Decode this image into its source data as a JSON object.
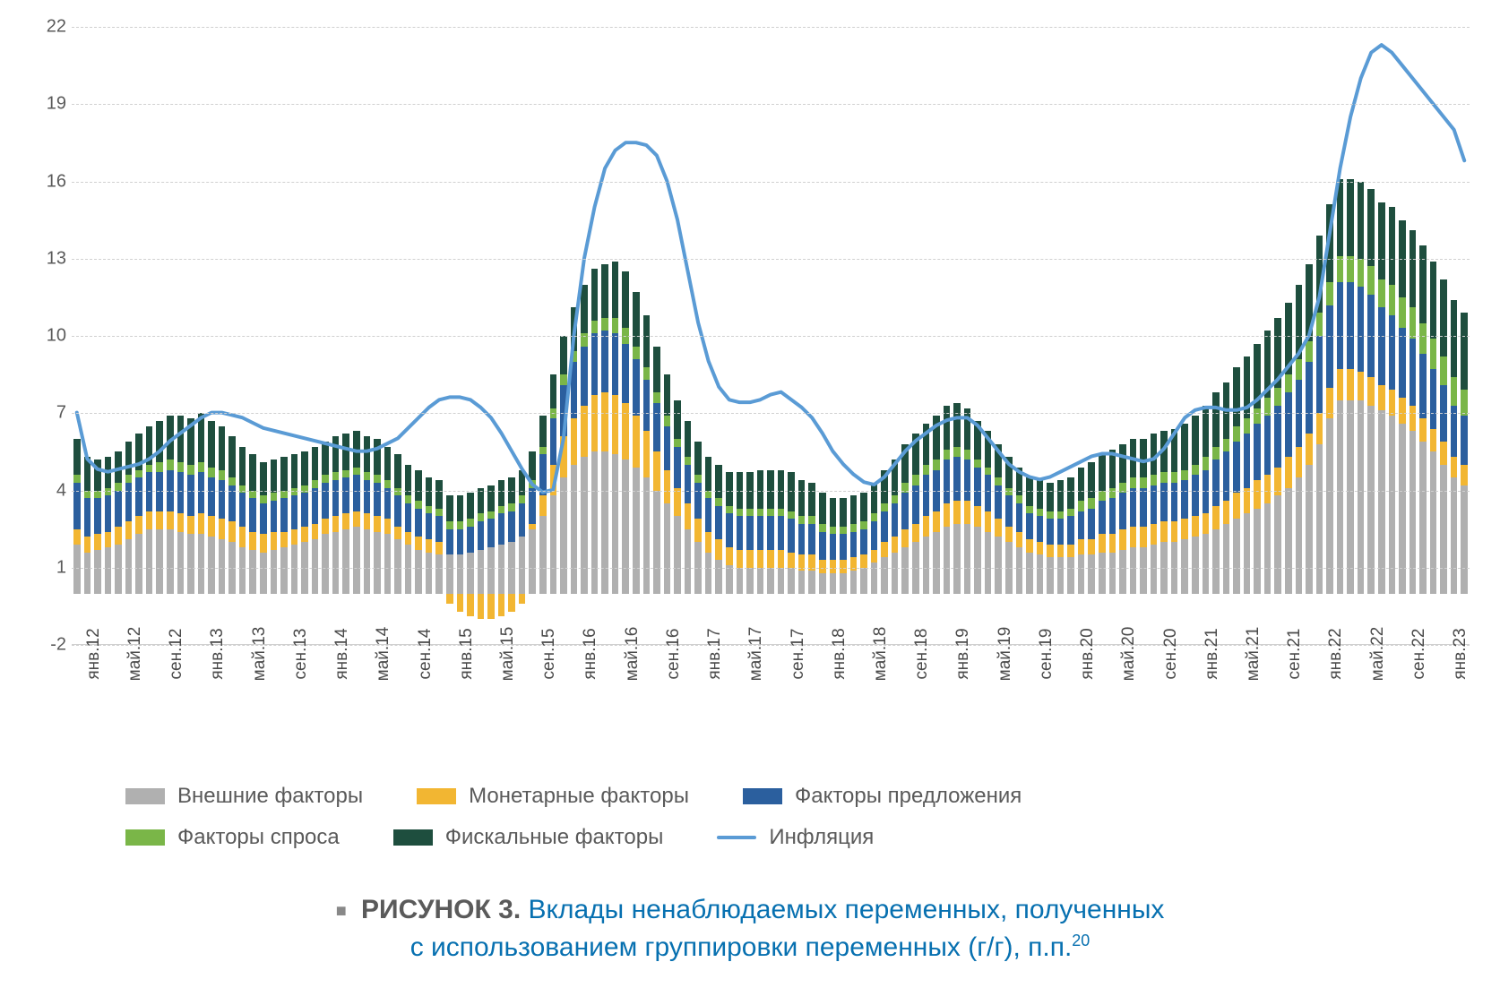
{
  "chart": {
    "type": "stacked-bar-with-line",
    "background_color": "#ffffff",
    "grid_color": "#d0d0d0",
    "axis_label_color": "#5a5a5a",
    "axis_fontsize": 20,
    "ylim": [
      -2,
      22
    ],
    "yticks": [
      -2,
      1,
      4,
      7,
      10,
      13,
      16,
      19,
      22
    ],
    "xlabel_visible_interval": 4,
    "bar_width_ratio": 0.65,
    "x_labels": [
      "янв.12",
      "фев.12",
      "мар.12",
      "апр.12",
      "май.12",
      "июн.12",
      "июл.12",
      "авг.12",
      "сен.12",
      "окт.12",
      "ноя.12",
      "дек.12",
      "янв.13",
      "фев.13",
      "мар.13",
      "апр.13",
      "май.13",
      "июн.13",
      "июл.13",
      "авг.13",
      "сен.13",
      "окт.13",
      "ноя.13",
      "дек.13",
      "янв.14",
      "фев.14",
      "мар.14",
      "апр.14",
      "май.14",
      "июн.14",
      "июл.14",
      "авг.14",
      "сен.14",
      "окт.14",
      "ноя.14",
      "дек.14",
      "янв.15",
      "фев.15",
      "мар.15",
      "апр.15",
      "май.15",
      "июн.15",
      "июл.15",
      "авг.15",
      "сен.15",
      "окт.15",
      "ноя.15",
      "дек.15",
      "янв.16",
      "фев.16",
      "мар.16",
      "апр.16",
      "май.16",
      "июн.16",
      "июл.16",
      "авг.16",
      "сен.16",
      "окт.16",
      "ноя.16",
      "дек.16",
      "янв.17",
      "фев.17",
      "мар.17",
      "апр.17",
      "май.17",
      "июн.17",
      "июл.17",
      "авг.17",
      "сен.17",
      "окт.17",
      "ноя.17",
      "дек.17",
      "янв.18",
      "фев.18",
      "мар.18",
      "апр.18",
      "май.18",
      "июн.18",
      "июл.18",
      "авг.18",
      "сен.18",
      "окт.18",
      "ноя.18",
      "дек.18",
      "янв.19",
      "фев.19",
      "мар.19",
      "апр.19",
      "май.19",
      "июн.19",
      "июл.19",
      "авг.19",
      "сен.19",
      "окт.19",
      "ноя.19",
      "дек.19",
      "янв.20",
      "фев.20",
      "мар.20",
      "апр.20",
      "май.20",
      "июн.20",
      "июл.20",
      "авг.20",
      "сен.20",
      "окт.20",
      "ноя.20",
      "дек.20",
      "янв.21",
      "фев.21",
      "мар.21",
      "апр.21",
      "май.21",
      "июн.21",
      "июл.21",
      "авг.21",
      "сен.21",
      "окт.21",
      "ноя.21",
      "дек.21",
      "янв.22",
      "фев.22",
      "мар.22",
      "апр.22",
      "май.22",
      "июн.22",
      "июл.22",
      "авг.22",
      "сен.22",
      "окт.22",
      "ноя.22",
      "дек.22",
      "янв.23",
      "фев.23",
      "мар.23"
    ],
    "series": {
      "external": {
        "label": "Внешние факторы",
        "color": "#b0b0b0",
        "data": [
          1.9,
          1.6,
          1.7,
          1.8,
          1.9,
          2.1,
          2.3,
          2.5,
          2.5,
          2.5,
          2.4,
          2.3,
          2.3,
          2.2,
          2.1,
          2.0,
          1.8,
          1.7,
          1.6,
          1.7,
          1.8,
          1.9,
          2.0,
          2.1,
          2.3,
          2.4,
          2.5,
          2.6,
          2.5,
          2.4,
          2.3,
          2.1,
          1.9,
          1.7,
          1.6,
          1.5,
          1.5,
          1.5,
          1.6,
          1.7,
          1.8,
          1.9,
          2.0,
          2.2,
          2.5,
          3.0,
          3.8,
          4.5,
          5.0,
          5.3,
          5.5,
          5.5,
          5.4,
          5.2,
          4.9,
          4.5,
          4.0,
          3.5,
          3.0,
          2.5,
          2.0,
          1.6,
          1.3,
          1.1,
          1.0,
          1.0,
          1.0,
          1.0,
          1.0,
          1.0,
          0.9,
          0.9,
          0.8,
          0.8,
          0.8,
          0.9,
          1.0,
          1.2,
          1.4,
          1.6,
          1.8,
          2.0,
          2.2,
          2.4,
          2.6,
          2.7,
          2.7,
          2.6,
          2.4,
          2.2,
          2.0,
          1.8,
          1.6,
          1.5,
          1.4,
          1.4,
          1.4,
          1.5,
          1.5,
          1.6,
          1.6,
          1.7,
          1.8,
          1.8,
          1.9,
          2.0,
          2.0,
          2.1,
          2.2,
          2.3,
          2.5,
          2.7,
          2.9,
          3.1,
          3.3,
          3.5,
          3.8,
          4.1,
          4.5,
          5.0,
          5.8,
          6.8,
          7.5,
          7.5,
          7.5,
          7.3,
          7.1,
          6.9,
          6.6,
          6.3,
          5.9,
          5.5,
          5.0,
          4.5,
          4.2
        ]
      },
      "monetary": {
        "label": "Монетарные факторы",
        "color": "#f2b632",
        "data": [
          0.6,
          0.6,
          0.6,
          0.6,
          0.7,
          0.7,
          0.7,
          0.7,
          0.7,
          0.7,
          0.7,
          0.7,
          0.8,
          0.8,
          0.8,
          0.8,
          0.8,
          0.7,
          0.7,
          0.7,
          0.6,
          0.6,
          0.6,
          0.6,
          0.6,
          0.6,
          0.6,
          0.6,
          0.6,
          0.6,
          0.6,
          0.5,
          0.5,
          0.5,
          0.5,
          0.5,
          -0.4,
          -0.7,
          -0.9,
          -1.0,
          -1.0,
          -0.9,
          -0.7,
          -0.4,
          0.2,
          0.8,
          1.2,
          1.6,
          1.8,
          2.0,
          2.2,
          2.3,
          2.3,
          2.2,
          2.0,
          1.8,
          1.5,
          1.3,
          1.1,
          1.0,
          0.9,
          0.8,
          0.8,
          0.7,
          0.7,
          0.7,
          0.7,
          0.7,
          0.7,
          0.6,
          0.6,
          0.6,
          0.5,
          0.5,
          0.5,
          0.5,
          0.5,
          0.5,
          0.6,
          0.6,
          0.7,
          0.7,
          0.8,
          0.8,
          0.9,
          0.9,
          0.9,
          0.8,
          0.8,
          0.7,
          0.6,
          0.6,
          0.5,
          0.5,
          0.5,
          0.5,
          0.5,
          0.6,
          0.6,
          0.7,
          0.7,
          0.8,
          0.8,
          0.8,
          0.8,
          0.8,
          0.8,
          0.8,
          0.8,
          0.8,
          0.9,
          0.9,
          1.0,
          1.0,
          1.1,
          1.1,
          1.1,
          1.2,
          1.2,
          1.2,
          1.2,
          1.2,
          1.2,
          1.2,
          1.1,
          1.1,
          1.0,
          1.0,
          1.0,
          1.0,
          0.9,
          0.9,
          0.9,
          0.8,
          0.8
        ]
      },
      "supply": {
        "label": "Факторы предложения",
        "color": "#2b5f9e",
        "data": [
          1.8,
          1.5,
          1.4,
          1.4,
          1.4,
          1.5,
          1.5,
          1.5,
          1.5,
          1.6,
          1.6,
          1.6,
          1.6,
          1.5,
          1.5,
          1.4,
          1.3,
          1.3,
          1.2,
          1.2,
          1.3,
          1.3,
          1.3,
          1.4,
          1.4,
          1.4,
          1.4,
          1.4,
          1.3,
          1.3,
          1.2,
          1.2,
          1.1,
          1.1,
          1.0,
          1.0,
          1.0,
          1.0,
          1.0,
          1.1,
          1.1,
          1.2,
          1.2,
          1.3,
          1.4,
          1.6,
          1.8,
          2.0,
          2.2,
          2.3,
          2.4,
          2.4,
          2.4,
          2.3,
          2.2,
          2.0,
          1.9,
          1.7,
          1.6,
          1.5,
          1.4,
          1.3,
          1.3,
          1.3,
          1.3,
          1.3,
          1.3,
          1.3,
          1.3,
          1.3,
          1.2,
          1.2,
          1.1,
          1.0,
          1.0,
          1.0,
          1.0,
          1.1,
          1.2,
          1.3,
          1.4,
          1.5,
          1.6,
          1.6,
          1.7,
          1.7,
          1.6,
          1.5,
          1.4,
          1.3,
          1.2,
          1.1,
          1.0,
          1.0,
          1.0,
          1.0,
          1.1,
          1.1,
          1.2,
          1.3,
          1.4,
          1.4,
          1.5,
          1.5,
          1.5,
          1.5,
          1.5,
          1.5,
          1.6,
          1.7,
          1.8,
          1.9,
          2.0,
          2.1,
          2.2,
          2.3,
          2.4,
          2.5,
          2.6,
          2.8,
          3.0,
          3.2,
          3.4,
          3.4,
          3.3,
          3.2,
          3.0,
          2.9,
          2.7,
          2.6,
          2.5,
          2.3,
          2.2,
          2.0,
          1.9
        ]
      },
      "demand": {
        "label": "Факторы спроса",
        "color": "#7ab648",
        "data": [
          0.3,
          0.3,
          0.3,
          0.3,
          0.3,
          0.3,
          0.3,
          0.3,
          0.4,
          0.4,
          0.4,
          0.4,
          0.4,
          0.4,
          0.4,
          0.3,
          0.3,
          0.3,
          0.3,
          0.3,
          0.3,
          0.3,
          0.3,
          0.3,
          0.3,
          0.3,
          0.3,
          0.3,
          0.3,
          0.3,
          0.3,
          0.3,
          0.3,
          0.3,
          0.3,
          0.3,
          0.3,
          0.3,
          0.3,
          0.3,
          0.3,
          0.3,
          0.3,
          0.3,
          0.3,
          0.3,
          0.4,
          0.4,
          0.4,
          0.5,
          0.5,
          0.5,
          0.6,
          0.6,
          0.5,
          0.5,
          0.4,
          0.4,
          0.3,
          0.3,
          0.3,
          0.3,
          0.3,
          0.3,
          0.3,
          0.3,
          0.3,
          0.3,
          0.3,
          0.3,
          0.3,
          0.3,
          0.3,
          0.3,
          0.3,
          0.3,
          0.3,
          0.3,
          0.3,
          0.3,
          0.4,
          0.4,
          0.4,
          0.4,
          0.4,
          0.4,
          0.4,
          0.3,
          0.3,
          0.3,
          0.3,
          0.3,
          0.3,
          0.3,
          0.3,
          0.3,
          0.3,
          0.4,
          0.4,
          0.4,
          0.4,
          0.4,
          0.4,
          0.4,
          0.4,
          0.4,
          0.4,
          0.4,
          0.4,
          0.5,
          0.5,
          0.5,
          0.6,
          0.6,
          0.6,
          0.7,
          0.7,
          0.7,
          0.8,
          0.8,
          0.9,
          0.9,
          1.0,
          1.0,
          1.1,
          1.1,
          1.1,
          1.2,
          1.2,
          1.2,
          1.2,
          1.2,
          1.1,
          1.1,
          1.0
        ]
      },
      "fiscal": {
        "label": "Фискальные факторы",
        "color": "#1e4e3e",
        "data": [
          1.4,
          1.3,
          1.2,
          1.2,
          1.2,
          1.3,
          1.4,
          1.5,
          1.6,
          1.7,
          1.8,
          1.8,
          1.9,
          1.8,
          1.7,
          1.6,
          1.5,
          1.4,
          1.3,
          1.3,
          1.3,
          1.3,
          1.3,
          1.3,
          1.3,
          1.4,
          1.4,
          1.4,
          1.4,
          1.4,
          1.3,
          1.3,
          1.2,
          1.2,
          1.1,
          1.1,
          1.0,
          1.0,
          1.0,
          1.0,
          1.0,
          1.0,
          1.0,
          1.0,
          1.1,
          1.2,
          1.3,
          1.5,
          1.7,
          1.9,
          2.0,
          2.1,
          2.2,
          2.2,
          2.1,
          2.0,
          1.8,
          1.6,
          1.5,
          1.4,
          1.3,
          1.3,
          1.3,
          1.3,
          1.4,
          1.4,
          1.5,
          1.5,
          1.5,
          1.5,
          1.4,
          1.3,
          1.2,
          1.1,
          1.1,
          1.1,
          1.1,
          1.2,
          1.3,
          1.4,
          1.5,
          1.6,
          1.6,
          1.7,
          1.7,
          1.7,
          1.6,
          1.5,
          1.4,
          1.3,
          1.2,
          1.1,
          1.1,
          1.1,
          1.1,
          1.2,
          1.2,
          1.3,
          1.4,
          1.4,
          1.5,
          1.5,
          1.5,
          1.5,
          1.6,
          1.6,
          1.7,
          1.8,
          1.9,
          2.0,
          2.1,
          2.2,
          2.3,
          2.4,
          2.5,
          2.6,
          2.7,
          2.8,
          2.9,
          3.0,
          3.0,
          3.0,
          3.0,
          3.0,
          3.0,
          3.0,
          3.0,
          3.0,
          3.0,
          3.0,
          3.0,
          3.0,
          3.0,
          3.0,
          3.0
        ]
      }
    },
    "line": {
      "label": "Инфляция",
      "color": "#5a9bd5",
      "width": 4,
      "data": [
        7.0,
        5.2,
        4.8,
        4.7,
        4.8,
        4.9,
        5.0,
        5.2,
        5.5,
        5.9,
        6.2,
        6.5,
        6.8,
        7.0,
        7.0,
        6.9,
        6.8,
        6.6,
        6.4,
        6.3,
        6.2,
        6.1,
        6.0,
        5.9,
        5.8,
        5.7,
        5.6,
        5.5,
        5.5,
        5.6,
        5.8,
        6.0,
        6.4,
        6.8,
        7.2,
        7.5,
        7.6,
        7.6,
        7.5,
        7.2,
        6.8,
        6.2,
        5.5,
        4.8,
        4.2,
        3.9,
        4.0,
        6.0,
        10.0,
        13.0,
        15.0,
        16.5,
        17.2,
        17.5,
        17.5,
        17.4,
        17.0,
        16.0,
        14.5,
        12.5,
        10.5,
        9.0,
        8.0,
        7.5,
        7.4,
        7.4,
        7.5,
        7.7,
        7.8,
        7.5,
        7.2,
        6.8,
        6.2,
        5.5,
        5.0,
        4.6,
        4.3,
        4.2,
        4.5,
        5.0,
        5.5,
        5.9,
        6.2,
        6.5,
        6.7,
        6.8,
        6.8,
        6.5,
        6.0,
        5.5,
        5.0,
        4.7,
        4.5,
        4.4,
        4.5,
        4.7,
        4.9,
        5.1,
        5.3,
        5.4,
        5.4,
        5.3,
        5.2,
        5.1,
        5.2,
        5.6,
        6.2,
        6.8,
        7.1,
        7.2,
        7.2,
        7.1,
        7.1,
        7.2,
        7.5,
        7.9,
        8.3,
        8.8,
        9.3,
        10.0,
        11.5,
        14.0,
        16.5,
        18.5,
        20.0,
        21.0,
        21.3,
        21.0,
        20.5,
        20.0,
        19.5,
        19.0,
        18.5,
        18.0,
        16.8
      ]
    },
    "legend_rows": [
      [
        {
          "key": "external",
          "type": "swatch"
        },
        {
          "key": "monetary",
          "type": "swatch"
        },
        {
          "key": "supply",
          "type": "swatch"
        }
      ],
      [
        {
          "key": "demand",
          "type": "swatch"
        },
        {
          "key": "fiscal",
          "type": "swatch"
        },
        {
          "key": "line",
          "type": "line"
        }
      ]
    ]
  },
  "caption": {
    "marker": "■",
    "bold_text": "РИСУНОК 3.",
    "text_line1": " Вклады ненаблюдаемых переменных, полученных",
    "text_line2": "с использованием группировки переменных (г/г), п.п.",
    "sup": "20"
  }
}
